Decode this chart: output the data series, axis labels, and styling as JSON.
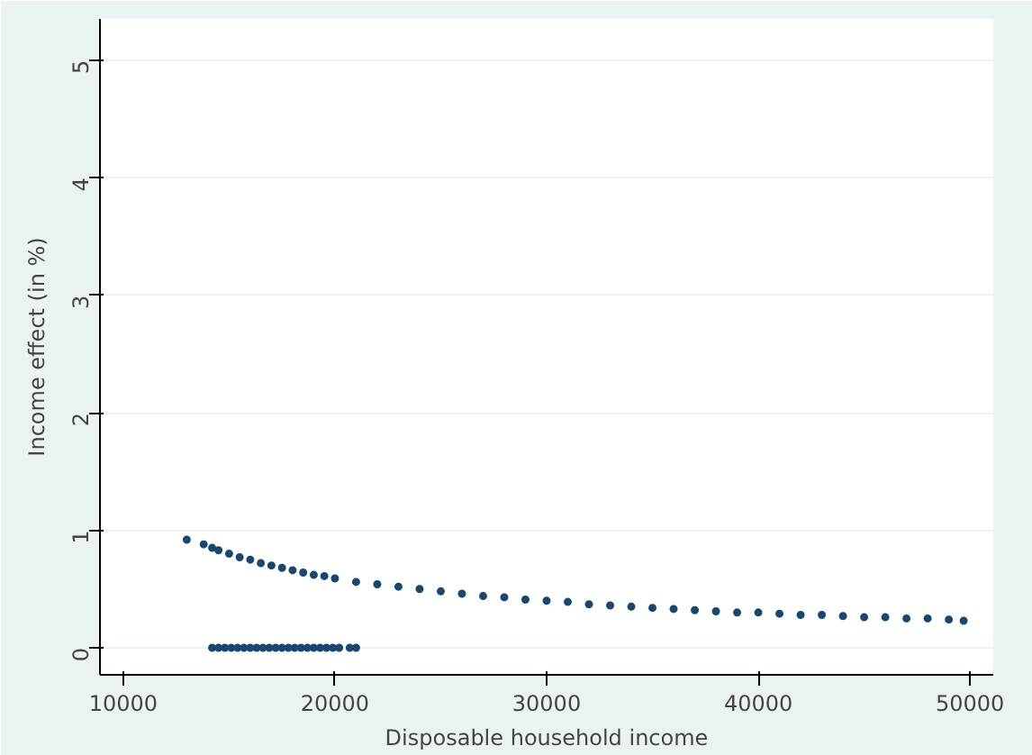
{
  "chart_data": {
    "type": "scatter",
    "xlabel": "Disposable household income",
    "ylabel": "Income effect (in %)",
    "xlim": [
      8900,
      51100
    ],
    "ylim": [
      -0.23,
      5.35
    ],
    "xticks": [
      10000,
      20000,
      30000,
      40000,
      50000
    ],
    "yticks": [
      0,
      1,
      2,
      3,
      4,
      5
    ],
    "grid": "y",
    "marker": "circle",
    "series": [
      {
        "color": "#1a476f",
        "x": [
          13000,
          13800,
          14200,
          14500,
          15000,
          15500,
          16000,
          16500,
          17000,
          17500,
          18000,
          18500,
          19000,
          19500,
          20000,
          21000,
          22000,
          23000,
          24000,
          25000,
          26000,
          27000,
          28000,
          29000,
          30000,
          31000,
          32000,
          33000,
          34000,
          35000,
          36000,
          37000,
          38000,
          39000,
          40000,
          41000,
          42000,
          43000,
          44000,
          45000,
          46000,
          47000,
          48000,
          49000,
          49700
        ],
        "values": [
          0.92,
          0.88,
          0.85,
          0.83,
          0.8,
          0.77,
          0.75,
          0.72,
          0.7,
          0.68,
          0.66,
          0.64,
          0.62,
          0.61,
          0.59,
          0.56,
          0.54,
          0.52,
          0.5,
          0.48,
          0.46,
          0.44,
          0.43,
          0.41,
          0.4,
          0.39,
          0.37,
          0.36,
          0.35,
          0.34,
          0.33,
          0.32,
          0.31,
          0.3,
          0.3,
          0.29,
          0.28,
          0.28,
          0.27,
          0.26,
          0.26,
          0.25,
          0.25,
          0.24,
          0.23
        ]
      },
      {
        "color": "#1a476f",
        "x": [
          14200,
          14500,
          14800,
          15100,
          15400,
          15700,
          16000,
          16300,
          16600,
          16900,
          17200,
          17500,
          17800,
          18100,
          18400,
          18700,
          19000,
          19300,
          19600,
          19900,
          20200,
          20700,
          21000
        ],
        "values": [
          0,
          0,
          0,
          0,
          0,
          0,
          0,
          0,
          0,
          0,
          0,
          0,
          0,
          0,
          0,
          0,
          0,
          0,
          0,
          0,
          0,
          0,
          0
        ]
      }
    ]
  }
}
